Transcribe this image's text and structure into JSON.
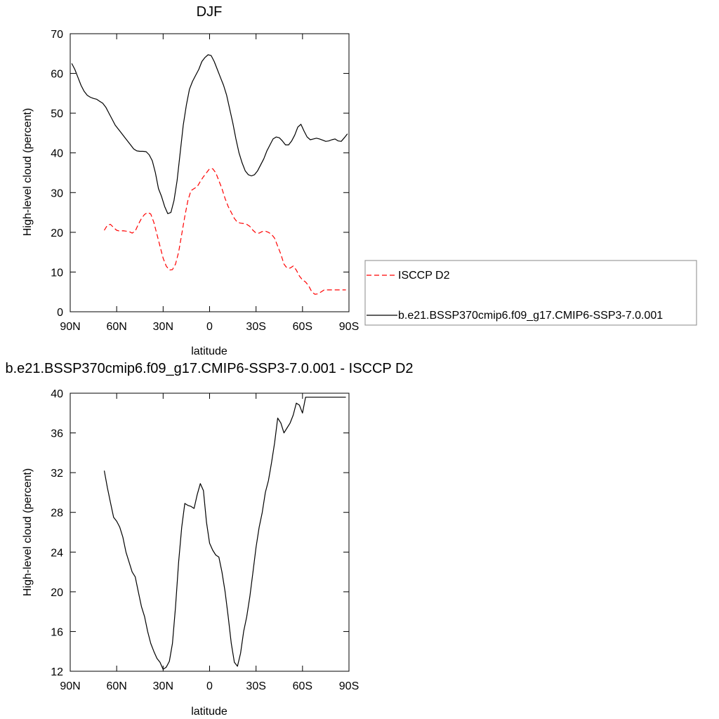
{
  "chart_data": [
    {
      "type": "line",
      "title": "DJF",
      "xlabel": "latitude",
      "ylabel": "High-level cloud (percent)",
      "xlim": [
        90,
        -90
      ],
      "ylim": [
        0,
        70
      ],
      "x_tick_values": [
        90,
        60,
        30,
        0,
        -30,
        -60,
        -90
      ],
      "x_tick_labels": [
        "90N",
        "60N",
        "30N",
        "0",
        "30S",
        "60S",
        "90S"
      ],
      "y_tick_values": [
        0,
        10,
        20,
        30,
        40,
        50,
        60,
        70
      ],
      "y_tick_labels": [
        "0",
        "10",
        "20",
        "30",
        "40",
        "50",
        "60",
        "70"
      ],
      "legend_position": "right",
      "series": [
        {
          "name": "ISCCP D2",
          "color": "#ff0000",
          "dash": "dashed",
          "x": [
            68,
            66,
            64,
            62,
            60,
            58,
            56,
            54,
            52,
            50,
            48,
            46,
            44,
            42,
            40,
            38,
            36,
            34,
            32,
            30,
            28,
            26,
            24,
            22,
            20,
            18,
            16,
            14,
            12,
            10,
            8,
            6,
            4,
            2,
            0,
            -2,
            -4,
            -6,
            -8,
            -10,
            -12,
            -14,
            -16,
            -18,
            -20,
            -22,
            -24,
            -26,
            -28,
            -30,
            -32,
            -34,
            -36,
            -38,
            -40,
            -42,
            -44,
            -46,
            -48,
            -50,
            -52,
            -54,
            -56,
            -58,
            -60,
            -62,
            -64,
            -66,
            -68,
            -70,
            -72,
            -74,
            -76,
            -78,
            -80,
            -82,
            -84,
            -86,
            -88
          ],
          "values": [
            20.5,
            21.8,
            22.0,
            21.2,
            20.5,
            20.3,
            20.4,
            20.3,
            20.2,
            19.8,
            20.3,
            22.0,
            23.5,
            24.5,
            25.0,
            24.6,
            22.5,
            19.5,
            16.5,
            13.5,
            11.5,
            10.5,
            10.6,
            12.0,
            15.0,
            19.5,
            24.0,
            28.0,
            30.5,
            31.0,
            31.5,
            32.8,
            34.0,
            35.0,
            36.0,
            36.0,
            35.0,
            33.0,
            31.0,
            28.5,
            26.5,
            25.0,
            23.5,
            22.5,
            22.3,
            22.2,
            22.0,
            21.5,
            20.5,
            19.8,
            19.8,
            20.2,
            20.3,
            20.0,
            19.5,
            18.5,
            16.5,
            14.5,
            12.0,
            11.0,
            11.0,
            11.5,
            10.5,
            9.0,
            8.0,
            7.5,
            6.5,
            5.0,
            4.4,
            4.5,
            5.0,
            5.5,
            5.5,
            5.5,
            5.5,
            5.5,
            5.5,
            5.5,
            5.5
          ]
        },
        {
          "name": "b.e21.BSSP370cmip6.f09_g17.CMIP6-SSP3-7.0.001",
          "color": "#000000",
          "dash": "solid",
          "x": [
            89,
            87,
            85,
            83,
            81,
            79,
            77,
            75,
            73,
            71,
            69,
            67,
            65,
            63,
            61,
            59,
            57,
            55,
            53,
            51,
            49,
            47,
            45,
            43,
            41,
            39,
            37,
            35,
            33,
            31,
            29,
            27,
            25,
            23,
            21,
            19,
            17,
            15,
            13,
            11,
            9,
            7,
            5,
            3,
            1,
            -1,
            -3,
            -5,
            -7,
            -9,
            -11,
            -13,
            -15,
            -17,
            -19,
            -21,
            -23,
            -25,
            -27,
            -29,
            -31,
            -33,
            -35,
            -37,
            -39,
            -41,
            -43,
            -45,
            -47,
            -49,
            -51,
            -53,
            -55,
            -57,
            -59,
            -61,
            -63,
            -65,
            -67,
            -69,
            -71,
            -73,
            -75,
            -77,
            -79,
            -81,
            -83,
            -85,
            -87,
            -89
          ],
          "values": [
            62.5,
            61.0,
            59.0,
            57.0,
            55.5,
            54.5,
            54.0,
            53.7,
            53.5,
            53.0,
            52.5,
            51.5,
            50.0,
            48.5,
            47.0,
            46.0,
            45.0,
            44.0,
            43.0,
            42.0,
            41.0,
            40.5,
            40.4,
            40.4,
            40.3,
            39.5,
            38.0,
            35.0,
            31.0,
            29.0,
            26.5,
            24.7,
            25.0,
            28.0,
            33.0,
            40.0,
            47.0,
            52.0,
            56.0,
            58.0,
            59.5,
            61.0,
            63.0,
            64.0,
            64.7,
            64.5,
            63.0,
            61.0,
            59.0,
            57.0,
            54.5,
            51.0,
            47.5,
            43.5,
            40.0,
            37.5,
            35.5,
            34.5,
            34.2,
            34.5,
            35.5,
            37.0,
            38.5,
            40.5,
            42.0,
            43.5,
            44.0,
            43.8,
            43.0,
            42.0,
            42.0,
            43.0,
            44.5,
            46.5,
            47.2,
            45.5,
            44.0,
            43.3,
            43.5,
            43.7,
            43.5,
            43.2,
            42.9,
            43.0,
            43.3,
            43.5,
            43.0,
            42.9,
            43.8,
            44.8
          ]
        }
      ]
    },
    {
      "type": "line",
      "title": "b.e21.BSSP370cmip6.f09_g17.CMIP6-SSP3-7.0.001 - ISCCP D2",
      "xlabel": "latitude",
      "ylabel": "High-level cloud (percent)",
      "xlim": [
        90,
        -90
      ],
      "ylim": [
        12,
        40
      ],
      "x_tick_values": [
        90,
        60,
        30,
        0,
        -30,
        -60,
        -90
      ],
      "x_tick_labels": [
        "90N",
        "60N",
        "30N",
        "0",
        "30S",
        "60S",
        "90S"
      ],
      "y_tick_values": [
        12,
        16,
        20,
        24,
        28,
        32,
        36,
        40
      ],
      "y_tick_labels": [
        "12",
        "16",
        "20",
        "24",
        "28",
        "32",
        "36",
        "40"
      ],
      "series": [
        {
          "color": "#000000",
          "dash": "solid",
          "x": [
            68,
            66,
            64,
            62,
            60,
            58,
            56,
            54,
            52,
            50,
            48,
            46,
            44,
            42,
            40,
            38,
            36,
            34,
            32,
            30,
            28,
            26,
            24,
            22,
            20,
            18,
            16,
            14,
            12,
            10,
            8,
            6,
            4,
            2,
            0,
            -2,
            -4,
            -6,
            -8,
            -10,
            -12,
            -14,
            -16,
            -18,
            -20,
            -22,
            -24,
            -26,
            -28,
            -30,
            -32,
            -34,
            -36,
            -38,
            -40,
            -42,
            -44,
            -46,
            -48,
            -50,
            -52,
            -54,
            -56,
            -58,
            -60,
            -62,
            -64,
            -66,
            -68,
            -70,
            -72,
            -74,
            -76,
            -78,
            -80,
            -82,
            -84,
            -86,
            -88
          ],
          "values": [
            32.2,
            30.5,
            29.0,
            27.5,
            27.1,
            26.5,
            25.5,
            24.0,
            23.0,
            22.0,
            21.5,
            20.0,
            18.5,
            17.5,
            16.0,
            14.8,
            14.0,
            13.3,
            12.9,
            12.2,
            12.4,
            13.0,
            14.8,
            18.5,
            23.0,
            26.5,
            28.9,
            28.7,
            28.6,
            28.4,
            29.8,
            30.9,
            30.2,
            27.0,
            24.9,
            24.2,
            23.7,
            23.5,
            22.0,
            20.0,
            17.5,
            14.8,
            12.9,
            12.5,
            13.8,
            16.0,
            17.5,
            19.5,
            22.0,
            24.5,
            26.5,
            28.0,
            30.0,
            31.2,
            33.0,
            35.0,
            37.5,
            37.0,
            36.0,
            36.5,
            37.0,
            37.8,
            39.0,
            38.8,
            38.0,
            39.6,
            39.6,
            39.6,
            39.6,
            39.6,
            39.6,
            39.6,
            39.6,
            39.6,
            39.6,
            39.6,
            39.6,
            39.6,
            39.6
          ]
        }
      ]
    }
  ]
}
